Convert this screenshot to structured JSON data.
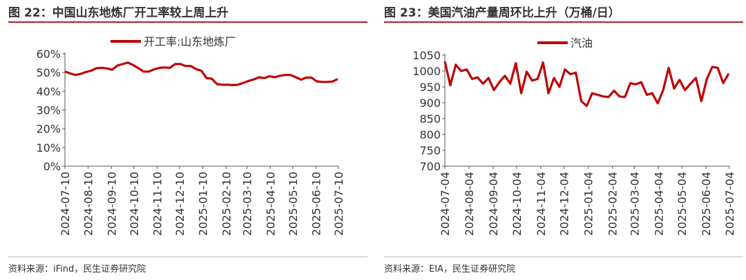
{
  "panels": [
    {
      "title": "图 22：中国山东地炼厂开工率较上周上升",
      "source": "资料来源：iFind，民生证券研究院"
    },
    {
      "title": "图 23：美国汽油产量周环比上升（万桶/日）",
      "source": "资料来源：EIA，民生证券研究院"
    }
  ],
  "chart_data": [
    {
      "type": "line",
      "title": "",
      "xlabel": "",
      "ylabel": "",
      "y_unit": "%",
      "ylim": [
        0,
        60
      ],
      "y_ticks": [
        0,
        10,
        20,
        30,
        40,
        50,
        60
      ],
      "y_tick_labels": [
        "0%",
        "10%",
        "20%",
        "30%",
        "40%",
        "50%",
        "60%"
      ],
      "x_range": [
        "2024-07-10",
        "2025-07-10"
      ],
      "x_ticks": [
        "2024-07-10",
        "2024-08-10",
        "2024-09-10",
        "2024-10-10",
        "2024-11-10",
        "2024-12-10",
        "2025-01-10",
        "2025-02-10",
        "2025-03-10",
        "2025-04-10",
        "2025-05-10",
        "2025-06-10",
        "2025-07-10"
      ],
      "grid": false,
      "legend": "top-center",
      "color": "#c00000",
      "series": [
        {
          "name": "开工率:山东地炼厂",
          "x": [
            "2024-07-10",
            "2024-07-17",
            "2024-07-24",
            "2024-07-31",
            "2024-08-07",
            "2024-08-14",
            "2024-08-21",
            "2024-08-28",
            "2024-09-04",
            "2024-09-11",
            "2024-09-18",
            "2024-09-25",
            "2024-10-02",
            "2024-10-09",
            "2024-10-16",
            "2024-10-23",
            "2024-10-30",
            "2024-11-06",
            "2024-11-13",
            "2024-11-20",
            "2024-11-27",
            "2024-12-04",
            "2024-12-11",
            "2024-12-18",
            "2024-12-25",
            "2025-01-01",
            "2025-01-08",
            "2025-01-15",
            "2025-01-22",
            "2025-01-29",
            "2025-02-05",
            "2025-02-12",
            "2025-02-19",
            "2025-02-26",
            "2025-03-05",
            "2025-03-12",
            "2025-03-19",
            "2025-03-26",
            "2025-04-02",
            "2025-04-09",
            "2025-04-16",
            "2025-04-23",
            "2025-04-30",
            "2025-05-07",
            "2025-05-14",
            "2025-05-21",
            "2025-05-28",
            "2025-06-04",
            "2025-06-11",
            "2025-06-18",
            "2025-06-25",
            "2025-07-02",
            "2025-07-09"
          ],
          "values": [
            50.5,
            49.5,
            48.7,
            49.3,
            50.3,
            51.0,
            52.3,
            52.5,
            52.2,
            51.5,
            53.7,
            54.5,
            55.3,
            54.0,
            52.3,
            50.5,
            50.5,
            51.7,
            52.5,
            52.7,
            52.5,
            54.5,
            54.5,
            53.5,
            53.5,
            51.8,
            51.0,
            47.0,
            46.7,
            43.8,
            43.5,
            43.5,
            43.3,
            43.5,
            44.5,
            45.5,
            46.3,
            47.5,
            47.0,
            48.0,
            47.5,
            48.3,
            48.7,
            48.7,
            47.5,
            46.2,
            47.3,
            47.3,
            45.3,
            45.0,
            45.0,
            45.2,
            46.5
          ]
        }
      ]
    },
    {
      "type": "line",
      "title": "",
      "xlabel": "",
      "ylabel": "",
      "y_unit": "万桶/日",
      "ylim": [
        700,
        1050
      ],
      "y_ticks": [
        700,
        750,
        800,
        850,
        900,
        950,
        1000,
        1050
      ],
      "y_tick_labels": [
        "700",
        "750",
        "800",
        "850",
        "900",
        "950",
        "1000",
        "1050"
      ],
      "x_range": [
        "2024-07-04",
        "2025-07-04"
      ],
      "x_ticks": [
        "2024-07-04",
        "2024-08-04",
        "2024-09-04",
        "2024-10-04",
        "2024-11-04",
        "2024-12-04",
        "2025-01-04",
        "2025-02-04",
        "2025-03-04",
        "2025-04-04",
        "2025-05-04",
        "2025-06-04",
        "2025-07-04"
      ],
      "grid": false,
      "legend": "top-center",
      "color": "#c00000",
      "series": [
        {
          "name": "汽油",
          "x": [
            "2024-07-04",
            "2024-07-11",
            "2024-07-18",
            "2024-07-25",
            "2024-08-01",
            "2024-08-08",
            "2024-08-15",
            "2024-08-22",
            "2024-08-29",
            "2024-09-05",
            "2024-09-12",
            "2024-09-19",
            "2024-09-26",
            "2024-10-03",
            "2024-10-10",
            "2024-10-17",
            "2024-10-24",
            "2024-10-31",
            "2024-11-07",
            "2024-11-14",
            "2024-11-21",
            "2024-11-28",
            "2024-12-05",
            "2024-12-12",
            "2024-12-19",
            "2024-12-26",
            "2025-01-02",
            "2025-01-09",
            "2025-01-16",
            "2025-01-23",
            "2025-01-30",
            "2025-02-06",
            "2025-02-13",
            "2025-02-20",
            "2025-02-27",
            "2025-03-06",
            "2025-03-13",
            "2025-03-20",
            "2025-03-27",
            "2025-04-03",
            "2025-04-10",
            "2025-04-17",
            "2025-04-24",
            "2025-05-01",
            "2025-05-08",
            "2025-05-15",
            "2025-05-22",
            "2025-05-29",
            "2025-06-05",
            "2025-06-12",
            "2025-06-19",
            "2025-06-26",
            "2025-07-03"
          ],
          "values": [
            1030,
            955,
            1020,
            1000,
            1005,
            975,
            980,
            960,
            978,
            940,
            965,
            985,
            960,
            1025,
            930,
            998,
            970,
            975,
            1027,
            930,
            978,
            950,
            1005,
            990,
            995,
            905,
            890,
            930,
            925,
            920,
            918,
            938,
            920,
            918,
            962,
            958,
            965,
            925,
            930,
            898,
            940,
            1010,
            945,
            972,
            940,
            960,
            978,
            905,
            975,
            1013,
            1010,
            962,
            992
          ]
        }
      ]
    }
  ]
}
